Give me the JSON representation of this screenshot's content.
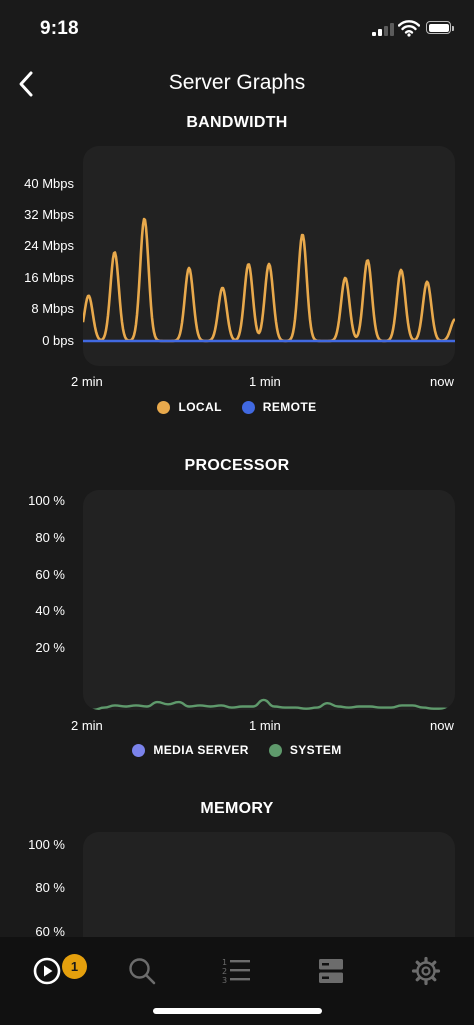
{
  "status_bar": {
    "time": "9:18"
  },
  "header": {
    "title": "Server Graphs",
    "back_icon": "chevron-left-icon"
  },
  "colors": {
    "background": "#1a1a1a",
    "panel": "#222222",
    "local": "#e8a94c",
    "remote": "#4169e1",
    "media_server": "#7b83eb",
    "system": "#5f9a6c",
    "badge": "#e5a00d"
  },
  "bandwidth": {
    "title": "BANDWIDTH",
    "y_ticks": [
      "40 Mbps",
      "32 Mbps",
      "24 Mbps",
      "16 Mbps",
      "8 Mbps",
      "0 bps"
    ],
    "x_ticks": [
      "2 min",
      "1 min",
      "now"
    ],
    "legend": [
      "LOCAL",
      "REMOTE"
    ]
  },
  "processor": {
    "title": "PROCESSOR",
    "y_ticks": [
      "100 %",
      "80 %",
      "60 %",
      "40 %",
      "20 %"
    ],
    "x_ticks": [
      "2 min",
      "1 min",
      "now"
    ],
    "legend": [
      "MEDIA SERVER",
      "SYSTEM"
    ]
  },
  "memory": {
    "title": "MEMORY",
    "y_ticks": [
      "100 %",
      "80 %",
      "60 %"
    ]
  },
  "bottom_nav": {
    "items": [
      "play-icon",
      "search-icon",
      "list-icon",
      "server-icon",
      "gear-icon"
    ],
    "badge_count": "1"
  },
  "chart_data": [
    {
      "type": "line",
      "title": "BANDWIDTH",
      "x_ticks": [
        "2 min",
        "1 min",
        "now"
      ],
      "y_ticks": [
        "0 bps",
        "8 Mbps",
        "16 Mbps",
        "24 Mbps",
        "32 Mbps",
        "40 Mbps"
      ],
      "ylim": [
        0,
        40
      ],
      "y_unit": "Mbps",
      "legend": "bottom",
      "series": [
        {
          "name": "LOCAL",
          "color": "#e8a94c",
          "peaks": [
            {
              "x": 0.015,
              "y": 11.5
            },
            {
              "x": 0.085,
              "y": 22.5
            },
            {
              "x": 0.165,
              "y": 31
            },
            {
              "x": 0.285,
              "y": 18.5
            },
            {
              "x": 0.375,
              "y": 13.5
            },
            {
              "x": 0.445,
              "y": 19.5
            },
            {
              "x": 0.5,
              "y": 19.5
            },
            {
              "x": 0.59,
              "y": 27
            },
            {
              "x": 0.705,
              "y": 16
            },
            {
              "x": 0.765,
              "y": 20.5
            },
            {
              "x": 0.855,
              "y": 18
            },
            {
              "x": 0.925,
              "y": 15
            },
            {
              "x": 1.0,
              "y": 5.5
            }
          ]
        },
        {
          "name": "REMOTE",
          "color": "#4169e1",
          "values": [
            0,
            0,
            0,
            0,
            0,
            0,
            0,
            0,
            0,
            0
          ]
        }
      ]
    },
    {
      "type": "line",
      "title": "PROCESSOR",
      "x_ticks": [
        "2 min",
        "1 min",
        "now"
      ],
      "y_ticks": [
        "20 %",
        "40 %",
        "60 %",
        "80 %",
        "100 %"
      ],
      "ylim": [
        0,
        100
      ],
      "y_unit": "%",
      "legend": "bottom",
      "series": [
        {
          "name": "MEDIA SERVER",
          "color": "#7b83eb",
          "values": [
            2,
            2,
            2.5,
            3.5,
            3,
            3,
            2.5,
            4.5,
            2.5,
            2.5,
            2.5,
            2.5,
            2.5,
            2.5,
            2.5,
            2.5,
            2.5,
            2.5,
            2.5,
            2.5,
            2.5,
            3.5,
            2.5,
            2.5,
            2.5,
            2.5,
            2.5,
            3,
            3,
            3,
            2.5,
            3,
            3.5,
            3,
            2.5,
            2
          ]
        },
        {
          "name": "SYSTEM",
          "color": "#5f9a6c",
          "values": [
            5,
            5.5,
            6.5,
            7.5,
            7,
            7.5,
            7,
            9,
            8,
            9,
            7,
            7.5,
            7,
            7.5,
            6.5,
            7,
            7,
            10,
            7,
            6.5,
            6.5,
            6,
            6.5,
            8.5,
            7,
            6.5,
            7,
            7,
            6.5,
            6.5,
            7.5,
            7.5,
            6.5,
            6,
            6,
            5
          ]
        }
      ]
    },
    {
      "type": "line",
      "title": "MEMORY",
      "y_ticks": [
        "60 %",
        "80 %",
        "100 %"
      ],
      "ylim": [
        0,
        100
      ],
      "y_unit": "%",
      "series": []
    }
  ]
}
